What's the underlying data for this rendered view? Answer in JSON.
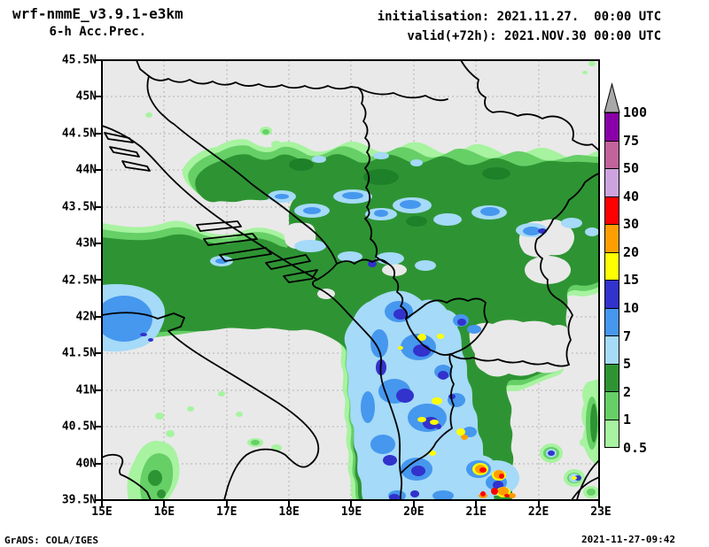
{
  "header": {
    "model_title": "wrf-nmmE_v3.9.1-e3km",
    "product_title": "6-h Acc.Prec.",
    "init_line": "initialisation: 2021.11.27.  00:00 UTC",
    "valid_line": "valid(+72h): 2021.NOV.30 00:00 UTC"
  },
  "axes": {
    "lat_labels": [
      "45.5N",
      "45N",
      "44.5N",
      "44N",
      "43.5N",
      "43N",
      "42.5N",
      "42N",
      "41.5N",
      "41N",
      "40.5N",
      "40N",
      "39.5N"
    ],
    "lon_labels": [
      "15E",
      "16E",
      "17E",
      "18E",
      "19E",
      "20E",
      "21E",
      "22E",
      "23E"
    ]
  },
  "legend": {
    "boundary_labels": [
      "100",
      "75",
      "50",
      "40",
      "30",
      "20",
      "15",
      "10",
      "7",
      "5",
      "2",
      "1",
      "0.5"
    ],
    "band_colors_top_to_bottom": [
      "#8a00a8",
      "#c2639b",
      "#cda3dd",
      "#ff0000",
      "#ff9e00",
      "#ffff00",
      "#3232cc",
      "#4697ee",
      "#a5daf8",
      "#2e9433",
      "#66cf66",
      "#a7f3a0"
    ],
    "overflow_color": "#a8a8a8"
  },
  "footer": {
    "credit": "GrADS: COLA/IGES",
    "timestamp": "2021-11-27-09:42"
  },
  "palette": {
    "land": "#e9e9e9",
    "grid": "#b4b4b4",
    "border_line": "#000000",
    "pale_green": "#a7f3a0",
    "med_green": "#66cf66",
    "dark_green": "#2e9433",
    "deep_green": "#1e8028",
    "pale_blue": "#a5daf8",
    "med_blue": "#4697ee",
    "royal_blue": "#3232cc",
    "yellow": "#ffff00",
    "orange": "#ff9e00",
    "red": "#ff0000",
    "lilac": "#cda3dd",
    "mauve": "#c2639b",
    "purple": "#8a00a8",
    "gray_overflow": "#a8a8a8"
  }
}
